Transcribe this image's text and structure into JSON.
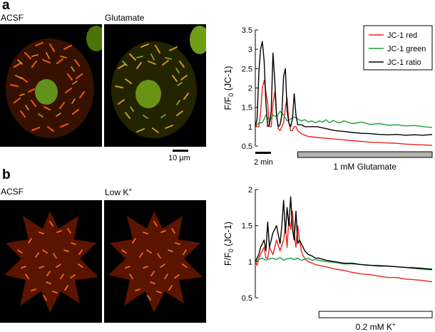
{
  "panel_a": {
    "letter": "a",
    "image_labels": [
      "ACSF",
      "Glutamate"
    ],
    "scale_bar_label": "10 µm",
    "time_bar_label": "2 min",
    "treatment_label": "1 mM Glutamate"
  },
  "panel_b": {
    "letter": "b",
    "image_labels": [
      "ACSF",
      "Low K",
      "+"
    ],
    "treatment_label": "0.2 mM K",
    "treatment_sup": "+"
  },
  "colors": {
    "red": "#e8231c",
    "green": "#1f9e3a",
    "black": "#000000",
    "glutamate_bar": "#b3b3b3",
    "lowk_bar": "#ffffff"
  },
  "chart_data": [
    {
      "type": "line",
      "panel": "a",
      "ylabel": "F/F",
      "ylabel_sub": "0",
      "ylabel_suffix": " (JC-1)",
      "ylim": [
        0.5,
        3.5
      ],
      "yticks": [
        "0.5",
        "1",
        "1.5",
        "2",
        "2.5",
        "3",
        "3.5"
      ],
      "xlim": [
        0,
        100
      ],
      "legend": [
        "JC-1 red",
        "JC-1 green",
        "JC-1 ratio"
      ],
      "legend_position": "top-right",
      "treatment_span": [
        24,
        100
      ],
      "series": [
        {
          "name": "JC-1 red",
          "color": "red",
          "x": [
            0,
            2,
            3,
            4,
            5,
            7,
            8,
            9,
            10,
            11,
            12,
            13,
            14,
            15,
            16,
            17,
            18,
            19,
            20,
            21,
            22,
            23,
            24,
            26,
            28,
            30,
            35,
            40,
            45,
            50,
            55,
            60,
            65,
            70,
            75,
            80,
            85,
            90,
            95,
            100
          ],
          "y": [
            1.0,
            1.0,
            1.35,
            2.0,
            2.2,
            1.6,
            1.0,
            1.0,
            1.6,
            1.9,
            1.3,
            0.95,
            0.9,
            1.0,
            1.1,
            1.5,
            1.75,
            1.1,
            0.9,
            0.9,
            1.0,
            1.0,
            0.9,
            0.82,
            0.78,
            0.75,
            0.72,
            0.7,
            0.68,
            0.66,
            0.64,
            0.62,
            0.6,
            0.59,
            0.58,
            0.57,
            0.55,
            0.54,
            0.53,
            0.52
          ]
        },
        {
          "name": "JC-1 green",
          "color": "green",
          "x": [
            0,
            2,
            4,
            6,
            8,
            10,
            12,
            14,
            16,
            18,
            20,
            22,
            24,
            26,
            28,
            30,
            32,
            34,
            36,
            38,
            40,
            42,
            44,
            46,
            48,
            50,
            55,
            60,
            65,
            70,
            75,
            80,
            85,
            90,
            95,
            100
          ],
          "y": [
            1.0,
            1.1,
            1.1,
            1.3,
            1.15,
            1.3,
            1.25,
            1.4,
            1.3,
            1.15,
            1.2,
            1.25,
            1.2,
            1.15,
            1.18,
            1.12,
            1.15,
            1.1,
            1.15,
            1.12,
            1.18,
            1.1,
            1.16,
            1.12,
            1.1,
            1.15,
            1.08,
            1.12,
            1.06,
            1.08,
            1.04,
            1.05,
            1.02,
            1.03,
            1.0,
            0.98
          ]
        },
        {
          "name": "JC-1 ratio",
          "color": "black",
          "x": [
            0,
            1,
            2,
            3,
            4,
            5,
            6,
            7,
            8,
            9,
            10,
            11,
            12,
            13,
            14,
            15,
            16,
            17,
            18,
            19,
            20,
            21,
            22,
            23,
            24,
            26,
            28,
            30,
            35,
            40,
            45,
            50,
            55,
            60,
            65,
            70,
            75,
            80,
            85,
            90,
            95,
            100
          ],
          "y": [
            1.0,
            1.2,
            2.4,
            3.0,
            3.2,
            2.7,
            1.6,
            1.0,
            1.05,
            1.4,
            2.9,
            2.2,
            1.3,
            1.0,
            1.05,
            1.3,
            2.3,
            2.5,
            1.4,
            1.1,
            1.0,
            1.2,
            1.85,
            1.3,
            1.05,
            1.05,
            1.0,
            1.0,
            1.0,
            0.95,
            0.9,
            0.88,
            0.85,
            0.83,
            0.82,
            0.8,
            0.79,
            0.8,
            0.78,
            0.79,
            0.78,
            0.8
          ]
        }
      ]
    },
    {
      "type": "line",
      "panel": "b",
      "ylabel": "F/F",
      "ylabel_sub": "0",
      "ylabel_suffix": " (JC-1)",
      "ylim": [
        0.5,
        2
      ],
      "yticks": [
        "0.5",
        "1",
        "1.5",
        "2"
      ],
      "xlim": [
        0,
        100
      ],
      "treatment_span": [
        36,
        100
      ],
      "series": [
        {
          "color": "red",
          "x": [
            0,
            1,
            2,
            3,
            5,
            6,
            7,
            8,
            10,
            12,
            14,
            16,
            17,
            18,
            19,
            20,
            21,
            22,
            23,
            24,
            25,
            26,
            27,
            28,
            29,
            30,
            32,
            34,
            36,
            40,
            45,
            50,
            55,
            60,
            65,
            70,
            75,
            80,
            85,
            90,
            95,
            100
          ],
          "y": [
            1.0,
            0.95,
            1.05,
            1.1,
            1.2,
            1.05,
            1.05,
            1.2,
            1.1,
            1.3,
            1.15,
            1.3,
            1.5,
            1.2,
            1.6,
            1.45,
            1.7,
            1.4,
            1.2,
            1.5,
            1.3,
            1.15,
            1.08,
            1.05,
            1.02,
            1.0,
            0.98,
            0.96,
            0.95,
            0.93,
            0.9,
            0.88,
            0.85,
            0.83,
            0.82,
            0.8,
            0.78,
            0.78,
            0.76,
            0.75,
            0.74,
            0.72
          ]
        },
        {
          "color": "green",
          "x": [
            0,
            2,
            4,
            6,
            8,
            10,
            12,
            14,
            16,
            18,
            20,
            22,
            24,
            26,
            28,
            30,
            32,
            34,
            36,
            40,
            45,
            50,
            55,
            60,
            65,
            70,
            75,
            80,
            85,
            90,
            95,
            100
          ],
          "y": [
            1.0,
            1.03,
            1.05,
            1.02,
            1.04,
            1.05,
            1.03,
            1.06,
            1.02,
            1.04,
            1.05,
            1.03,
            1.05,
            1.02,
            1.03,
            1.05,
            1.02,
            1.03,
            1.02,
            1.0,
            0.99,
            0.97,
            0.97,
            0.96,
            0.95,
            0.95,
            0.94,
            0.93,
            0.92,
            0.92,
            0.91,
            0.9
          ]
        },
        {
          "color": "black",
          "x": [
            0,
            1,
            2,
            3,
            5,
            6,
            7,
            8,
            10,
            12,
            14,
            15,
            16,
            17,
            18,
            19,
            20,
            21,
            22,
            23,
            24,
            25,
            26,
            27,
            28,
            30,
            32,
            34,
            36,
            40,
            45,
            50,
            55,
            60,
            65,
            70,
            75,
            80,
            85,
            90,
            95,
            100
          ],
          "y": [
            1.0,
            1.05,
            1.1,
            1.2,
            1.3,
            1.15,
            1.55,
            1.2,
            1.4,
            1.5,
            1.25,
            1.5,
            1.85,
            1.4,
            1.75,
            1.5,
            1.9,
            1.45,
            1.3,
            1.7,
            1.25,
            1.3,
            1.25,
            1.2,
            1.15,
            1.1,
            1.08,
            1.05,
            1.05,
            1.02,
            1.0,
            0.98,
            0.98,
            0.96,
            0.95,
            0.94,
            0.94,
            0.93,
            0.92,
            0.91,
            0.9,
            0.89
          ]
        }
      ]
    }
  ]
}
